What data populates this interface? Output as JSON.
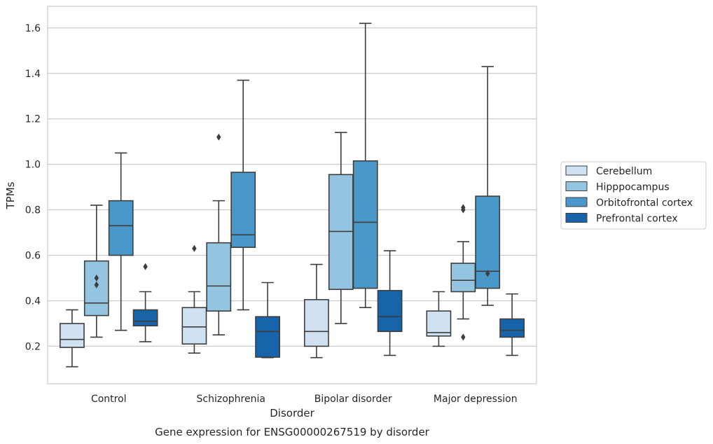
{
  "chart_data": {
    "type": "box",
    "caption": "Gene expression for ENSG00000267519 by disorder",
    "xlabel": "Disorder",
    "ylabel": "TPMs",
    "ylim": [
      0.035,
      1.695
    ],
    "yticks": [
      0.2,
      0.4,
      0.6,
      0.8,
      1.0,
      1.2,
      1.4,
      1.6
    ],
    "ytick_labels": [
      "0.2",
      "0.4",
      "0.6",
      "0.8",
      "1.0",
      "1.2",
      "1.4",
      "1.6"
    ],
    "grid": "horizontal",
    "legend_position": "right",
    "categories": [
      "Control",
      "Schizophrenia",
      "Bipolar disorder",
      "Major depression"
    ],
    "series": [
      {
        "name": "Cerebellum",
        "color": "#d0e1f2",
        "boxes": [
          {
            "whislo": 0.11,
            "q1": 0.195,
            "med": 0.23,
            "q3": 0.3,
            "whishi": 0.36,
            "fliers": []
          },
          {
            "whislo": 0.17,
            "q1": 0.21,
            "med": 0.285,
            "q3": 0.37,
            "whishi": 0.44,
            "fliers": [
              0.63
            ]
          },
          {
            "whislo": 0.15,
            "q1": 0.2,
            "med": 0.265,
            "q3": 0.405,
            "whishi": 0.56,
            "fliers": []
          },
          {
            "whislo": 0.2,
            "q1": 0.245,
            "med": 0.26,
            "q3": 0.355,
            "whishi": 0.44,
            "fliers": []
          }
        ]
      },
      {
        "name": "Hipppocampus",
        "color": "#94c4df",
        "boxes": [
          {
            "whislo": 0.24,
            "q1": 0.335,
            "med": 0.39,
            "q3": 0.575,
            "whishi": 0.82,
            "fliers": [
              0.47,
              0.5
            ]
          },
          {
            "whislo": 0.25,
            "q1": 0.355,
            "med": 0.465,
            "q3": 0.655,
            "whishi": 0.84,
            "fliers": [
              1.12
            ]
          },
          {
            "whislo": 0.3,
            "q1": 0.45,
            "med": 0.705,
            "q3": 0.955,
            "whishi": 1.14,
            "fliers": []
          },
          {
            "whislo": 0.32,
            "q1": 0.44,
            "med": 0.49,
            "q3": 0.565,
            "whishi": 0.66,
            "fliers": [
              0.24,
              0.8,
              0.81
            ]
          }
        ]
      },
      {
        "name": "Orbitofrontal cortex",
        "color": "#4a98c9",
        "boxes": [
          {
            "whislo": 0.27,
            "q1": 0.6,
            "med": 0.73,
            "q3": 0.84,
            "whishi": 1.05,
            "fliers": []
          },
          {
            "whislo": 0.36,
            "q1": 0.635,
            "med": 0.69,
            "q3": 0.965,
            "whishi": 1.37,
            "fliers": []
          },
          {
            "whislo": 0.37,
            "q1": 0.455,
            "med": 0.745,
            "q3": 1.015,
            "whishi": 1.62,
            "fliers": []
          },
          {
            "whislo": 0.38,
            "q1": 0.455,
            "med": 0.53,
            "q3": 0.86,
            "whishi": 1.43,
            "fliers": [
              0.52
            ]
          }
        ]
      },
      {
        "name": "Prefrontal cortex",
        "color": "#1764ab",
        "boxes": [
          {
            "whislo": 0.22,
            "q1": 0.29,
            "med": 0.31,
            "q3": 0.36,
            "whishi": 0.44,
            "fliers": [
              0.55
            ]
          },
          {
            "whislo": 0.15,
            "q1": 0.152,
            "med": 0.265,
            "q3": 0.33,
            "whishi": 0.48,
            "fliers": []
          },
          {
            "whislo": 0.16,
            "q1": 0.265,
            "med": 0.33,
            "q3": 0.445,
            "whishi": 0.62,
            "fliers": []
          },
          {
            "whislo": 0.16,
            "q1": 0.24,
            "med": 0.27,
            "q3": 0.32,
            "whishi": 0.43,
            "fliers": []
          }
        ]
      }
    ]
  }
}
